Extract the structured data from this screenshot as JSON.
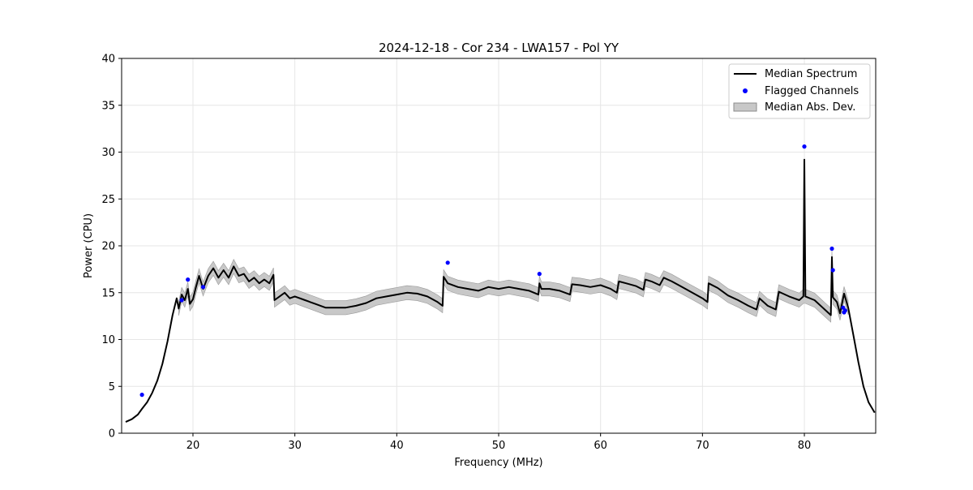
{
  "chart_data": {
    "type": "line",
    "title": "2024-12-18 - Cor 234 - LWA157 - Pol YY",
    "xlabel": "Frequency (MHz)",
    "ylabel": "Power (CPU)",
    "xlim": [
      13,
      87
    ],
    "ylim": [
      0,
      40
    ],
    "xticks": [
      20,
      30,
      40,
      50,
      60,
      70,
      80
    ],
    "yticks": [
      0,
      5,
      10,
      15,
      20,
      25,
      30,
      35,
      40
    ],
    "grid": true,
    "legend_position": "top-right",
    "series": [
      {
        "name": "Median Spectrum",
        "style": "line",
        "color": "#000000",
        "points": [
          [
            13.4,
            1.2
          ],
          [
            14.0,
            1.5
          ],
          [
            14.6,
            2.0
          ],
          [
            15.0,
            2.6
          ],
          [
            15.5,
            3.3
          ],
          [
            16.0,
            4.3
          ],
          [
            16.5,
            5.6
          ],
          [
            17.0,
            7.4
          ],
          [
            17.5,
            9.8
          ],
          [
            18.0,
            12.6
          ],
          [
            18.4,
            14.4
          ],
          [
            18.6,
            13.3
          ],
          [
            18.9,
            14.8
          ],
          [
            19.2,
            14.2
          ],
          [
            19.5,
            15.4
          ],
          [
            19.7,
            13.8
          ],
          [
            20.0,
            14.3
          ],
          [
            20.3,
            15.6
          ],
          [
            20.6,
            16.8
          ],
          [
            21.0,
            15.4
          ],
          [
            21.5,
            16.8
          ],
          [
            22.0,
            17.6
          ],
          [
            22.5,
            16.6
          ],
          [
            23.0,
            17.4
          ],
          [
            23.5,
            16.6
          ],
          [
            24.0,
            17.8
          ],
          [
            24.5,
            16.8
          ],
          [
            25.0,
            17.0
          ],
          [
            25.5,
            16.2
          ],
          [
            26.0,
            16.6
          ],
          [
            26.5,
            16.0
          ],
          [
            27.0,
            16.4
          ],
          [
            27.5,
            16.0
          ],
          [
            27.9,
            16.9
          ],
          [
            28.0,
            14.2
          ],
          [
            28.5,
            14.6
          ],
          [
            29.0,
            15.0
          ],
          [
            29.5,
            14.4
          ],
          [
            30.0,
            14.6
          ],
          [
            31.0,
            14.2
          ],
          [
            32.0,
            13.8
          ],
          [
            33.0,
            13.4
          ],
          [
            34.0,
            13.4
          ],
          [
            35.0,
            13.4
          ],
          [
            36.0,
            13.6
          ],
          [
            37.0,
            13.9
          ],
          [
            38.0,
            14.4
          ],
          [
            39.0,
            14.6
          ],
          [
            40.0,
            14.8
          ],
          [
            41.0,
            15.0
          ],
          [
            42.0,
            14.9
          ],
          [
            43.0,
            14.6
          ],
          [
            44.0,
            14.0
          ],
          [
            44.5,
            13.6
          ],
          [
            44.6,
            16.7
          ],
          [
            45.0,
            16.0
          ],
          [
            46.0,
            15.6
          ],
          [
            47.0,
            15.4
          ],
          [
            48.0,
            15.2
          ],
          [
            49.0,
            15.6
          ],
          [
            50.0,
            15.4
          ],
          [
            51.0,
            15.6
          ],
          [
            52.0,
            15.4
          ],
          [
            53.0,
            15.2
          ],
          [
            53.9,
            14.8
          ],
          [
            54.0,
            16.0
          ],
          [
            54.2,
            15.4
          ],
          [
            55.0,
            15.4
          ],
          [
            56.0,
            15.2
          ],
          [
            57.0,
            14.8
          ],
          [
            57.2,
            15.9
          ],
          [
            58.0,
            15.8
          ],
          [
            59.0,
            15.6
          ],
          [
            60.0,
            15.8
          ],
          [
            61.0,
            15.4
          ],
          [
            61.6,
            15.0
          ],
          [
            61.8,
            16.2
          ],
          [
            62.5,
            16.0
          ],
          [
            63.5,
            15.7
          ],
          [
            64.2,
            15.3
          ],
          [
            64.4,
            16.4
          ],
          [
            65.0,
            16.2
          ],
          [
            65.8,
            15.8
          ],
          [
            66.2,
            16.6
          ],
          [
            67.0,
            16.2
          ],
          [
            68.0,
            15.6
          ],
          [
            69.0,
            15.0
          ],
          [
            70.0,
            14.4
          ],
          [
            70.5,
            14.0
          ],
          [
            70.6,
            16.0
          ],
          [
            71.5,
            15.5
          ],
          [
            72.5,
            14.7
          ],
          [
            73.5,
            14.2
          ],
          [
            74.5,
            13.6
          ],
          [
            75.3,
            13.2
          ],
          [
            75.6,
            14.4
          ],
          [
            76.4,
            13.6
          ],
          [
            77.2,
            13.2
          ],
          [
            77.5,
            15.1
          ],
          [
            78.5,
            14.6
          ],
          [
            79.5,
            14.2
          ],
          [
            79.9,
            14.6
          ],
          [
            80.0,
            29.2
          ],
          [
            80.1,
            14.6
          ],
          [
            81.0,
            14.2
          ],
          [
            81.8,
            13.4
          ],
          [
            82.3,
            12.9
          ],
          [
            82.6,
            12.6
          ],
          [
            82.7,
            18.8
          ],
          [
            82.8,
            14.5
          ],
          [
            83.2,
            14.0
          ],
          [
            83.5,
            12.8
          ],
          [
            83.9,
            14.9
          ],
          [
            84.3,
            13.4
          ],
          [
            84.8,
            10.5
          ],
          [
            85.3,
            7.6
          ],
          [
            85.8,
            5.0
          ],
          [
            86.3,
            3.3
          ],
          [
            86.9,
            2.2
          ]
        ]
      },
      {
        "name": "Flagged Channels",
        "style": "scatter",
        "color": "#0000ff",
        "points": [
          [
            15.0,
            4.1
          ],
          [
            18.9,
            14.2
          ],
          [
            19.5,
            16.4
          ],
          [
            21.0,
            15.6
          ],
          [
            45.0,
            18.2
          ],
          [
            54.0,
            17.0
          ],
          [
            80.0,
            30.6
          ],
          [
            82.7,
            19.7
          ],
          [
            82.8,
            17.4
          ],
          [
            83.8,
            13.4
          ],
          [
            83.9,
            12.9
          ],
          [
            84.0,
            13.1
          ]
        ]
      },
      {
        "name": "Median Abs. Dev.",
        "style": "band",
        "color": "#c8c8c8",
        "band_halfwidth": 0.75
      }
    ]
  }
}
